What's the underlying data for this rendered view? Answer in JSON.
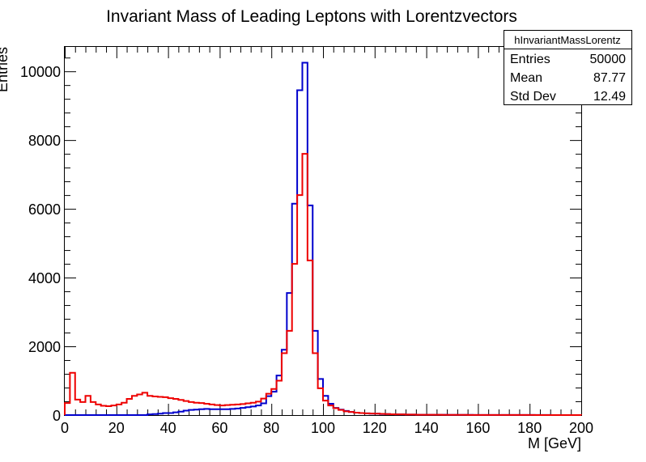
{
  "chart_data": {
    "type": "histogram",
    "title": "Invariant Mass of Leading Leptons with Lorentzvectors",
    "xlabel": "M [GeV]",
    "ylabel": "Entries",
    "xlim": [
      0,
      200
    ],
    "ylim": [
      0,
      10710
    ],
    "bin_width": 2,
    "x_ticks": [
      "0",
      "20",
      "40",
      "60",
      "80",
      "100",
      "120",
      "140",
      "160",
      "180",
      "200"
    ],
    "y_ticks": [
      "0",
      "2000",
      "4000",
      "6000",
      "8000",
      "10000"
    ],
    "x_tick_values": [
      0,
      20,
      40,
      60,
      80,
      100,
      120,
      140,
      160,
      180,
      200
    ],
    "y_tick_values": [
      0,
      2000,
      4000,
      6000,
      8000,
      10000
    ],
    "colors": {
      "blue": "#0000cc",
      "red": "#ee0000",
      "frame": "#000000"
    },
    "series": [
      {
        "name": "hInvariantMassLorentz",
        "color": "#0000cc",
        "values": [
          0,
          0,
          0,
          0,
          0,
          0,
          0,
          0,
          0,
          0,
          0,
          0,
          0,
          0,
          0,
          0,
          20,
          30,
          40,
          60,
          60,
          80,
          100,
          130,
          150,
          160,
          170,
          180,
          170,
          170,
          170,
          170,
          180,
          190,
          210,
          230,
          250,
          280,
          340,
          550,
          680,
          1150,
          1900,
          3550,
          6150,
          9450,
          10250,
          6100,
          2450,
          1050,
          560,
          330,
          210,
          160,
          120,
          90,
          70,
          60,
          50,
          40,
          40,
          30,
          30,
          25,
          20,
          20,
          15,
          15,
          10,
          10,
          10,
          10,
          8,
          8,
          6,
          6,
          5,
          5,
          5,
          4,
          4,
          4,
          3,
          3,
          3,
          3,
          2,
          2,
          2,
          2,
          2,
          2,
          2,
          2,
          1,
          1,
          1,
          1,
          1,
          1
        ]
      },
      {
        "name": "red",
        "color": "#ee0000",
        "values": [
          350,
          1230,
          450,
          380,
          560,
          380,
          310,
          270,
          260,
          280,
          310,
          360,
          470,
          560,
          600,
          650,
          560,
          540,
          530,
          520,
          490,
          470,
          440,
          410,
          380,
          360,
          350,
          330,
          310,
          290,
          280,
          290,
          300,
          310,
          320,
          340,
          360,
          390,
          480,
          620,
          760,
          1000,
          1800,
          2450,
          4400,
          6400,
          7600,
          4500,
          1800,
          780,
          420,
          280,
          200,
          150,
          110,
          90,
          70,
          60,
          50,
          45,
          40,
          35,
          30,
          25,
          20,
          20,
          15,
          15,
          10,
          10,
          10,
          8,
          8,
          6,
          6,
          5,
          5,
          5,
          4,
          4,
          3,
          3,
          3,
          3,
          2,
          2,
          2,
          2,
          2,
          2,
          2,
          1,
          1,
          1,
          1,
          1,
          1,
          1,
          1,
          1
        ]
      }
    ],
    "stats_box": {
      "title": "hInvariantMassLorentz",
      "rows": [
        {
          "label": "Entries",
          "value": "50000"
        },
        {
          "label": "Mean",
          "value": "87.77"
        },
        {
          "label": "Std Dev",
          "value": "12.49"
        }
      ]
    }
  }
}
